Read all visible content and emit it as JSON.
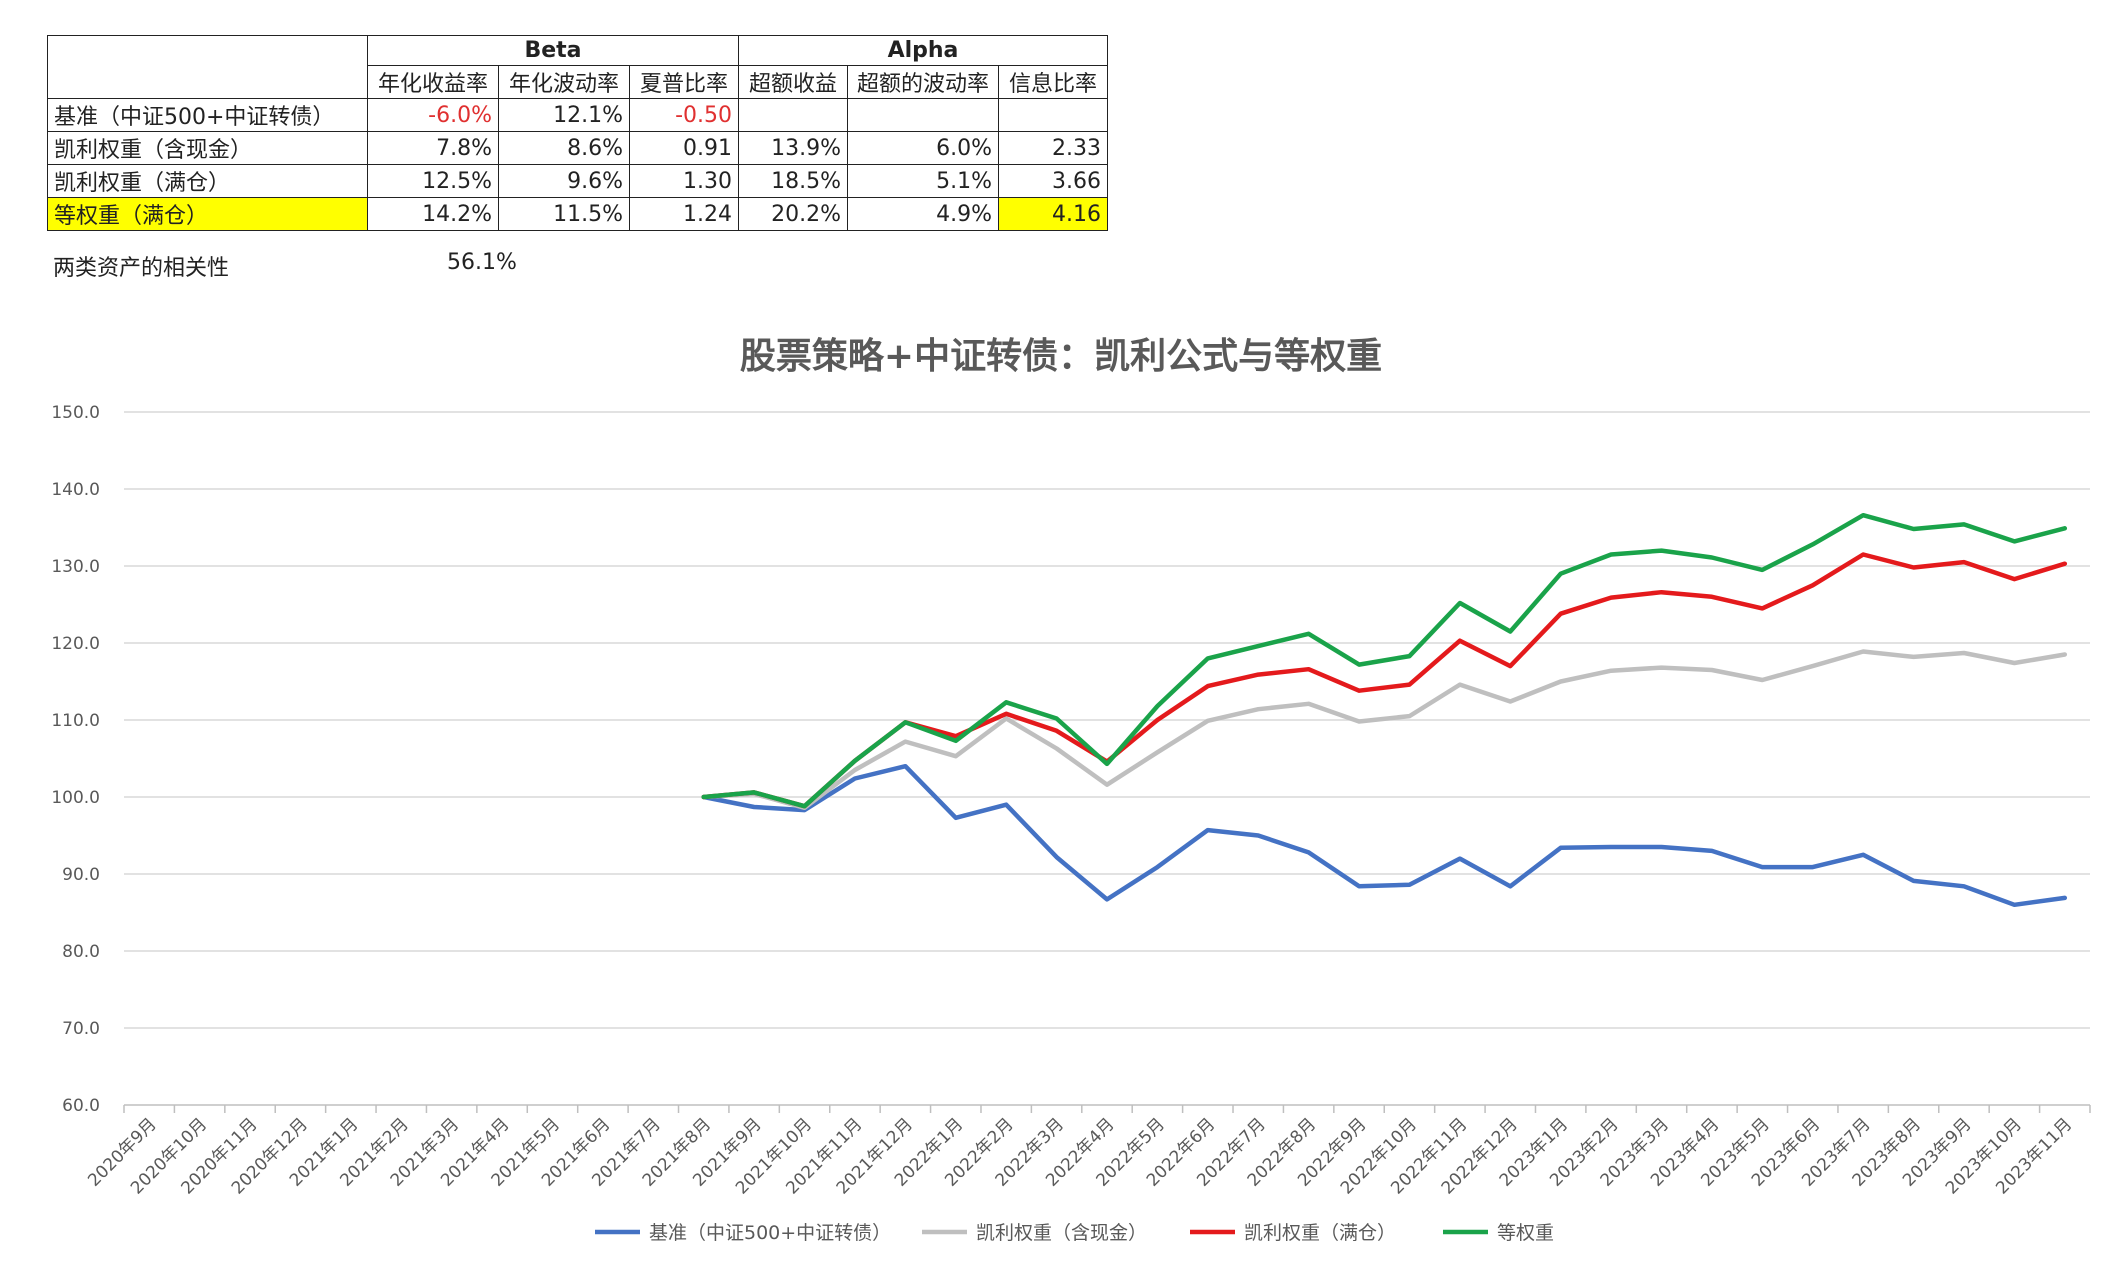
{
  "table": {
    "group_beta": "Beta",
    "group_alpha": "Alpha",
    "headers": [
      "年化收益率",
      "年化波动率",
      "夏普比率",
      "超额收益",
      "超额的波动率",
      "信息比率"
    ],
    "rows": [
      {
        "label": "基准（中证500+中证转债）",
        "cells": [
          "-6.0%",
          "12.1%",
          "-0.50",
          "",
          "",
          ""
        ],
        "neg": [
          true,
          false,
          true,
          false,
          false,
          false
        ],
        "highlight": false
      },
      {
        "label": "凯利权重（含现金）",
        "cells": [
          "7.8%",
          "8.6%",
          "0.91",
          "13.9%",
          "6.0%",
          "2.33"
        ],
        "neg": [
          false,
          false,
          false,
          false,
          false,
          false
        ],
        "highlight": false
      },
      {
        "label": "凯利权重（满仓）",
        "cells": [
          "12.5%",
          "9.6%",
          "1.30",
          "18.5%",
          "5.1%",
          "3.66"
        ],
        "neg": [
          false,
          false,
          false,
          false,
          false,
          false
        ],
        "highlight": false
      },
      {
        "label": "等权重（满仓）",
        "cells": [
          "14.2%",
          "11.5%",
          "1.24",
          "20.2%",
          "4.9%",
          "4.16"
        ],
        "neg": [
          false,
          false,
          false,
          false,
          false,
          false
        ],
        "highlight": true
      }
    ]
  },
  "correlation": {
    "label": "两类资产的相关性",
    "value": "56.1%"
  },
  "colors": {
    "highlight": "#ffff00",
    "negative": "#e03030"
  },
  "chart_data": {
    "type": "line",
    "title": "股票策略+中证转债：凯利公式与等权重",
    "ylim": [
      60,
      150
    ],
    "yticks": [
      "60.0",
      "70.0",
      "80.0",
      "90.0",
      "100.0",
      "110.0",
      "120.0",
      "130.0",
      "140.0",
      "150.0"
    ],
    "grid": true,
    "legend_position": "bottom",
    "categories": [
      "2020年9月",
      "2020年10月",
      "2020年11月",
      "2020年12月",
      "2021年1月",
      "2021年2月",
      "2021年3月",
      "2021年4月",
      "2021年5月",
      "2021年6月",
      "2021年7月",
      "2021年8月",
      "2021年9月",
      "2021年10月",
      "2021年11月",
      "2021年12月",
      "2022年1月",
      "2022年2月",
      "2022年3月",
      "2022年4月",
      "2022年5月",
      "2022年6月",
      "2022年7月",
      "2022年8月",
      "2022年9月",
      "2022年10月",
      "2022年11月",
      "2022年12月",
      "2023年1月",
      "2023年2月",
      "2023年3月",
      "2023年4月",
      "2023年5月",
      "2023年6月",
      "2023年7月",
      "2023年8月",
      "2023年9月",
      "2023年10月",
      "2023年11月"
    ],
    "series": [
      {
        "name": "基准（中证500+中证转债）",
        "color": "#4472c4",
        "values": [
          null,
          null,
          null,
          null,
          null,
          null,
          null,
          null,
          null,
          null,
          null,
          100.0,
          98.7,
          98.3,
          102.4,
          104.0,
          97.3,
          99.0,
          92.2,
          86.7,
          90.9,
          95.7,
          95.0,
          92.8,
          88.4,
          88.6,
          92.0,
          88.4,
          93.4,
          93.5,
          93.5,
          93.0,
          90.9,
          90.9,
          92.5,
          89.1,
          88.4,
          86.0,
          86.9
        ]
      },
      {
        "name": "凯利权重（含现金）",
        "color": "#bfbfbf",
        "values": [
          null,
          null,
          null,
          null,
          null,
          null,
          null,
          null,
          null,
          null,
          null,
          100.0,
          100.4,
          98.6,
          103.5,
          107.2,
          105.3,
          110.2,
          106.3,
          101.6,
          105.8,
          109.9,
          111.4,
          112.1,
          109.8,
          110.5,
          114.6,
          112.4,
          115.0,
          116.4,
          116.8,
          116.5,
          115.2,
          117.0,
          118.9,
          118.2,
          118.7,
          117.4,
          118.5
        ]
      },
      {
        "name": "凯利权重（满仓）",
        "color": "#e41a1c",
        "values": [
          null,
          null,
          null,
          null,
          null,
          null,
          null,
          null,
          null,
          null,
          null,
          100.0,
          100.6,
          98.8,
          104.7,
          109.7,
          107.9,
          110.8,
          108.6,
          104.6,
          110.0,
          114.4,
          115.9,
          116.6,
          113.8,
          114.6,
          120.3,
          117.0,
          123.8,
          125.9,
          126.6,
          126.0,
          124.5,
          127.5,
          131.5,
          129.8,
          130.5,
          128.3,
          130.3
        ]
      },
      {
        "name": "等权重",
        "color": "#1aa34a",
        "values": [
          null,
          null,
          null,
          null,
          null,
          null,
          null,
          null,
          null,
          null,
          null,
          100.0,
          100.6,
          98.8,
          104.7,
          109.7,
          107.3,
          112.3,
          110.2,
          104.3,
          111.8,
          118.0,
          119.6,
          121.2,
          117.2,
          118.3,
          125.2,
          121.5,
          129.0,
          131.5,
          132.0,
          131.1,
          129.5,
          132.8,
          136.6,
          134.8,
          135.4,
          133.2,
          134.9
        ]
      }
    ]
  }
}
